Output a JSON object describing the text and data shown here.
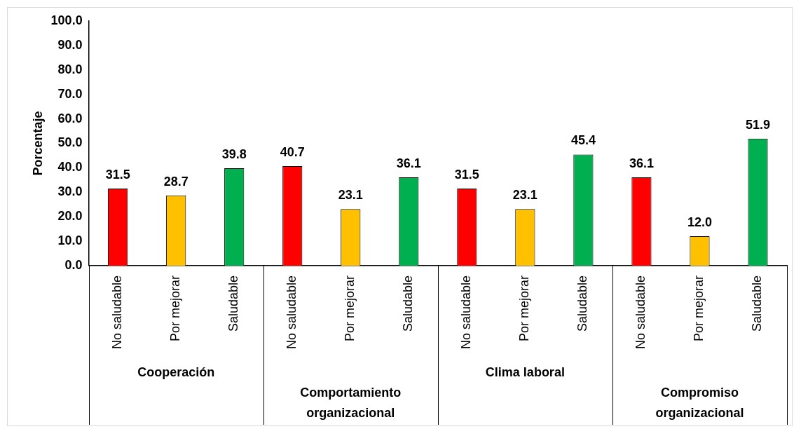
{
  "chart_data": {
    "type": "bar",
    "ylabel": "Porcentaje",
    "categories": [
      "No saludable",
      "Por mejorar",
      "Saludable",
      "No saludable",
      "Por mejorar",
      "Saludable",
      "No saludable",
      "Por mejorar",
      "Saludable",
      "No saludable",
      "Por mejorar",
      "Saludable"
    ],
    "values": [
      31.5,
      28.7,
      39.8,
      40.7,
      23.1,
      36.1,
      31.5,
      23.1,
      45.4,
      36.1,
      12.0,
      51.9
    ],
    "colors": [
      "#ff0000",
      "#ffc000",
      "#00b050",
      "#ff0000",
      "#ffc000",
      "#00b050",
      "#ff0000",
      "#ffc000",
      "#00b050",
      "#ff0000",
      "#ffc000",
      "#00b050"
    ],
    "value_labels": [
      "31.5",
      "28.7",
      "39.8",
      "40.7",
      "23.1",
      "36.1",
      "31.5",
      "23.1",
      "45.4",
      "36.1",
      "12.0",
      "51.9"
    ],
    "annotations": [
      "Cooperación",
      "Comportamiento\norganizacional",
      "Clima laboral",
      "Compromiso\norganizacional"
    ],
    "ylim": [
      0,
      100
    ],
    "yticks": [
      {
        "value": 0,
        "label": "0.0"
      },
      {
        "value": 10,
        "label": "10.0"
      },
      {
        "value": 20,
        "label": "20.0"
      },
      {
        "value": 30,
        "label": "30.0"
      },
      {
        "value": 40,
        "label": "40.0"
      },
      {
        "value": 50,
        "label": "50.0"
      },
      {
        "value": 60,
        "label": "60.0"
      },
      {
        "value": 70,
        "label": "70.0"
      },
      {
        "value": 80,
        "label": "80.0"
      },
      {
        "value": 90,
        "label": "90.0"
      },
      {
        "value": 100,
        "label": "100.0"
      }
    ],
    "grid": false,
    "legend": false
  }
}
